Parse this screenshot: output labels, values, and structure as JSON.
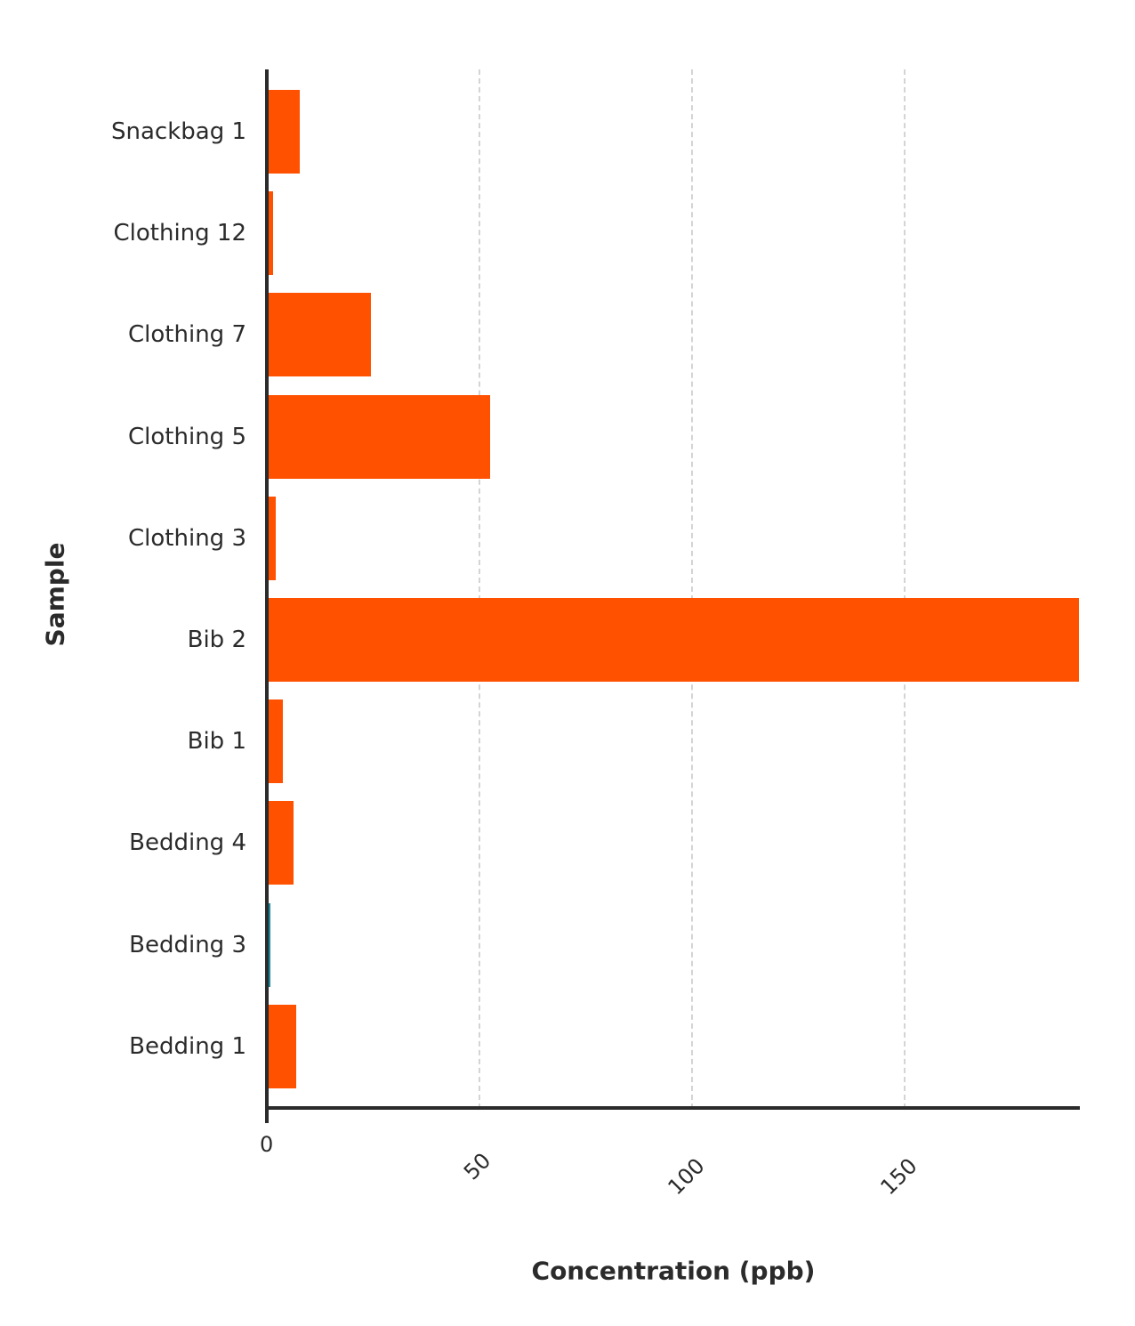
{
  "chart_data": {
    "type": "bar",
    "orientation": "horizontal",
    "title": "",
    "xlabel": "Concentration (ppb)",
    "ylabel": "Sample",
    "xlim": [
      0,
      191
    ],
    "x_ticks": [
      "0",
      "50",
      "100",
      "150"
    ],
    "grid": "vertical dashed",
    "legend": "none",
    "categories": [
      "Snackbag 1",
      "Clothing 12",
      "Clothing 7",
      "Clothing 5",
      "Clothing 3",
      "Bib 2",
      "Bib 1",
      "Bedding 4",
      "Bedding 3",
      "Bedding 1"
    ],
    "values": [
      7.7,
      1.5,
      24.5,
      52.5,
      2.0,
      191.0,
      3.8,
      6.2,
      0.8,
      6.8
    ],
    "colors": [
      "#ff5100",
      "#ff5100",
      "#ff5100",
      "#ff5100",
      "#ff5100",
      "#ff5100",
      "#ff5100",
      "#ff5100",
      "#1a8a9e",
      "#ff5100"
    ]
  },
  "labels": {
    "y_title": "Sample",
    "x_title": "Concentration (ppb)"
  }
}
